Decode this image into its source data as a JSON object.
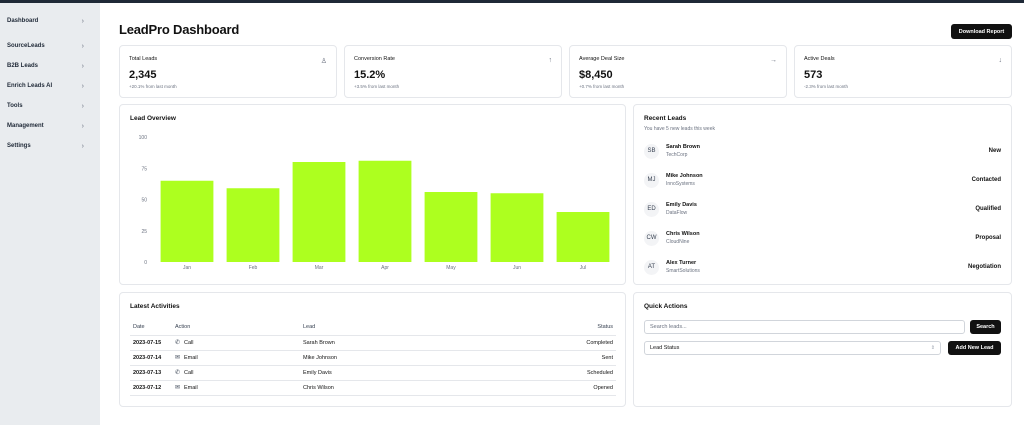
{
  "sidebar": {
    "items": [
      {
        "label": "Dashboard"
      },
      {
        "label": "SourceLeads"
      },
      {
        "label": "B2B Leads"
      },
      {
        "label": "Enrich Leads AI"
      },
      {
        "label": "Tools"
      },
      {
        "label": "Management"
      },
      {
        "label": "Settings"
      }
    ],
    "chevron": "›"
  },
  "header": {
    "title": "LeadPro Dashboard",
    "download_label": "Download Report"
  },
  "stats": [
    {
      "label": "Total Leads",
      "value": "2,345",
      "sub": "+20.1% from last month",
      "icon": "user-icon",
      "glyph": "♙"
    },
    {
      "label": "Conversion Rate",
      "value": "15.2%",
      "sub": "+3.5% from last month",
      "icon": "arrow-up-icon",
      "glyph": "↑"
    },
    {
      "label": "Average Deal Size",
      "value": "$8,450",
      "sub": "+0.7% from last month",
      "icon": "arrow-right-icon",
      "glyph": "→"
    },
    {
      "label": "Active Deals",
      "value": "573",
      "sub": "-2.3% from last month",
      "icon": "arrow-down-icon",
      "glyph": "↓"
    }
  ],
  "chart": {
    "title": "Lead Overview"
  },
  "chart_data": {
    "type": "bar",
    "categories": [
      "Jan",
      "Feb",
      "Mar",
      "Apr",
      "May",
      "Jun",
      "Jul"
    ],
    "values": [
      65,
      59,
      80,
      81,
      56,
      55,
      40
    ],
    "ylim": [
      0,
      100
    ],
    "yticks": [
      0,
      25,
      50,
      75,
      100
    ],
    "color": "#adff1f",
    "grid": false
  },
  "recent_leads": {
    "title": "Recent Leads",
    "subtitle": "You have 5 new leads this week",
    "items": [
      {
        "initials": "SB",
        "name": "Sarah Brown",
        "company": "TechCorp",
        "status": "New"
      },
      {
        "initials": "MJ",
        "name": "Mike Johnson",
        "company": "InnoSystems",
        "status": "Contacted"
      },
      {
        "initials": "ED",
        "name": "Emily Davis",
        "company": "DataFlow",
        "status": "Qualified"
      },
      {
        "initials": "CW",
        "name": "Chris Wilson",
        "company": "CloudNine",
        "status": "Proposal"
      },
      {
        "initials": "AT",
        "name": "Alex Turner",
        "company": "SmartSolutions",
        "status": "Negotiation"
      }
    ]
  },
  "activities": {
    "title": "Latest Activities",
    "columns": [
      "Date",
      "Action",
      "Lead",
      "Status"
    ],
    "rows": [
      {
        "date": "2023-07-15",
        "icon": "phone-icon",
        "glyph": "✆",
        "action": "Call",
        "lead": "Sarah Brown",
        "status": "Completed"
      },
      {
        "date": "2023-07-14",
        "icon": "mail-icon",
        "glyph": "✉",
        "action": "Email",
        "lead": "Mike Johnson",
        "status": "Sent"
      },
      {
        "date": "2023-07-13",
        "icon": "phone-icon",
        "glyph": "✆",
        "action": "Call",
        "lead": "Emily Davis",
        "status": "Scheduled"
      },
      {
        "date": "2023-07-12",
        "icon": "mail-icon",
        "glyph": "✉",
        "action": "Email",
        "lead": "Chris Wilson",
        "status": "Opened"
      }
    ]
  },
  "quick_actions": {
    "title": "Quick Actions",
    "search_placeholder": "Search leads...",
    "search_label": "Search",
    "status_select": "Lead Status",
    "select_chevron": "⇕",
    "add_label": "Add New Lead"
  }
}
